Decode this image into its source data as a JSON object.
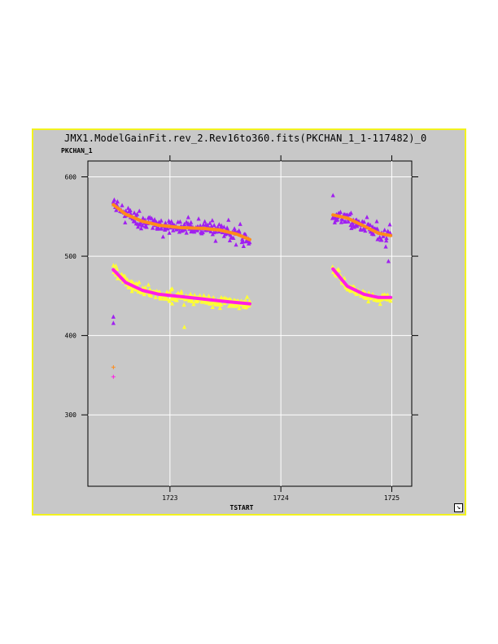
{
  "window": {
    "title": "JMX1.ModelGainFit.rev_2.Rev16to360.fits(PKCHAN_1_1-117482)_0",
    "resize_icon": "resize-arrow-icon"
  },
  "chart_data": {
    "type": "scatter",
    "title": "JMX1.ModelGainFit.rev_2.Rev16to360.fits(PKCHAN_1_1-117482)_0",
    "xlabel": "TSTART",
    "ylabel": "PKCHAN_1",
    "xlim": [
      1722.26,
      1725.18
    ],
    "ylim": [
      210,
      620
    ],
    "x_ticks": [
      1723,
      1724,
      1725
    ],
    "x_tick_labels": [
      "1723",
      "1724",
      "1725"
    ],
    "y_ticks": [
      300,
      400,
      500,
      600
    ],
    "y_tick_labels": [
      "300",
      "400",
      "500",
      "600"
    ],
    "grid": true,
    "background": "#c8c8c8",
    "series": [
      {
        "marker": "triangle",
        "color": "#a020f0",
        "segments": [
          {
            "x_range": [
              1722.49,
              1723.72
            ],
            "fit_points": [
              [
                1722.49,
                567
              ],
              [
                1722.6,
                555
              ],
              [
                1722.75,
                545
              ],
              [
                1722.9,
                540
              ],
              [
                1723.1,
                537
              ],
              [
                1723.3,
                536
              ],
              [
                1723.45,
                534
              ],
              [
                1723.6,
                528
              ],
              [
                1723.72,
                521
              ]
            ],
            "scatter": 14
          },
          {
            "x_range": [
              1724.47,
              1724.99
            ],
            "fit_points": [
              [
                1724.47,
                552
              ],
              [
                1724.6,
                548
              ],
              [
                1724.75,
                538
              ],
              [
                1724.88,
                528
              ],
              [
                1724.99,
                526
              ]
            ],
            "scatter": 14
          }
        ]
      },
      {
        "marker": "triangle",
        "color": "#ffff33",
        "segments": [
          {
            "x_range": [
              1722.49,
              1723.72
            ],
            "fit_points": [
              [
                1722.49,
                485
              ],
              [
                1722.6,
                468
              ],
              [
                1722.75,
                457
              ],
              [
                1722.9,
                452
              ],
              [
                1723.1,
                449
              ],
              [
                1723.3,
                446
              ],
              [
                1723.5,
                443
              ],
              [
                1723.72,
                440
              ]
            ],
            "scatter": 10
          },
          {
            "x_range": [
              1724.47,
              1724.99
            ],
            "fit_points": [
              [
                1724.47,
                484
              ],
              [
                1724.6,
                462
              ],
              [
                1724.75,
                452
              ],
              [
                1724.88,
                448
              ],
              [
                1724.99,
                448
              ]
            ],
            "scatter": 8
          }
        ]
      },
      {
        "name_fit": "fit",
        "marker": "line",
        "color": "#ff8c1a",
        "segments": [
          {
            "points": [
              [
                1722.49,
                565
              ],
              [
                1722.6,
                553
              ],
              [
                1722.75,
                544
              ],
              [
                1722.9,
                539
              ],
              [
                1723.1,
                536
              ],
              [
                1723.3,
                535
              ],
              [
                1723.45,
                533
              ],
              [
                1723.6,
                528
              ],
              [
                1723.72,
                521
              ]
            ]
          },
          {
            "points": [
              [
                1724.47,
                552
              ],
              [
                1724.6,
                548
              ],
              [
                1724.75,
                538
              ],
              [
                1724.88,
                529
              ],
              [
                1724.99,
                526
              ]
            ]
          }
        ]
      },
      {
        "marker": "line",
        "color": "#ff1ee6",
        "segments": [
          {
            "points": [
              [
                1722.49,
                483
              ],
              [
                1722.6,
                467
              ],
              [
                1722.75,
                457
              ],
              [
                1722.9,
                452
              ],
              [
                1723.1,
                449
              ],
              [
                1723.3,
                446
              ],
              [
                1723.5,
                443
              ],
              [
                1723.72,
                440
              ]
            ]
          },
          {
            "points": [
              [
                1724.47,
                484
              ],
              [
                1724.6,
                462
              ],
              [
                1724.75,
                452
              ],
              [
                1724.88,
                448
              ],
              [
                1724.99,
                448
              ]
            ]
          }
        ]
      }
    ],
    "outliers": [
      {
        "x": 1722.49,
        "y": 424,
        "marker": "triangle",
        "color": "#a020f0"
      },
      {
        "x": 1722.49,
        "y": 416,
        "marker": "triangle",
        "color": "#a020f0"
      },
      {
        "x": 1722.49,
        "y": 360,
        "marker": "plus",
        "color": "#ff8c1a"
      },
      {
        "x": 1722.49,
        "y": 348,
        "marker": "plus",
        "color": "#ff1ee6"
      },
      {
        "x": 1723.13,
        "y": 411,
        "marker": "triangle",
        "color": "#ffff33"
      },
      {
        "x": 1724.97,
        "y": 494,
        "marker": "triangle",
        "color": "#a020f0"
      },
      {
        "x": 1724.47,
        "y": 577,
        "marker": "triangle",
        "color": "#a020f0"
      }
    ]
  }
}
